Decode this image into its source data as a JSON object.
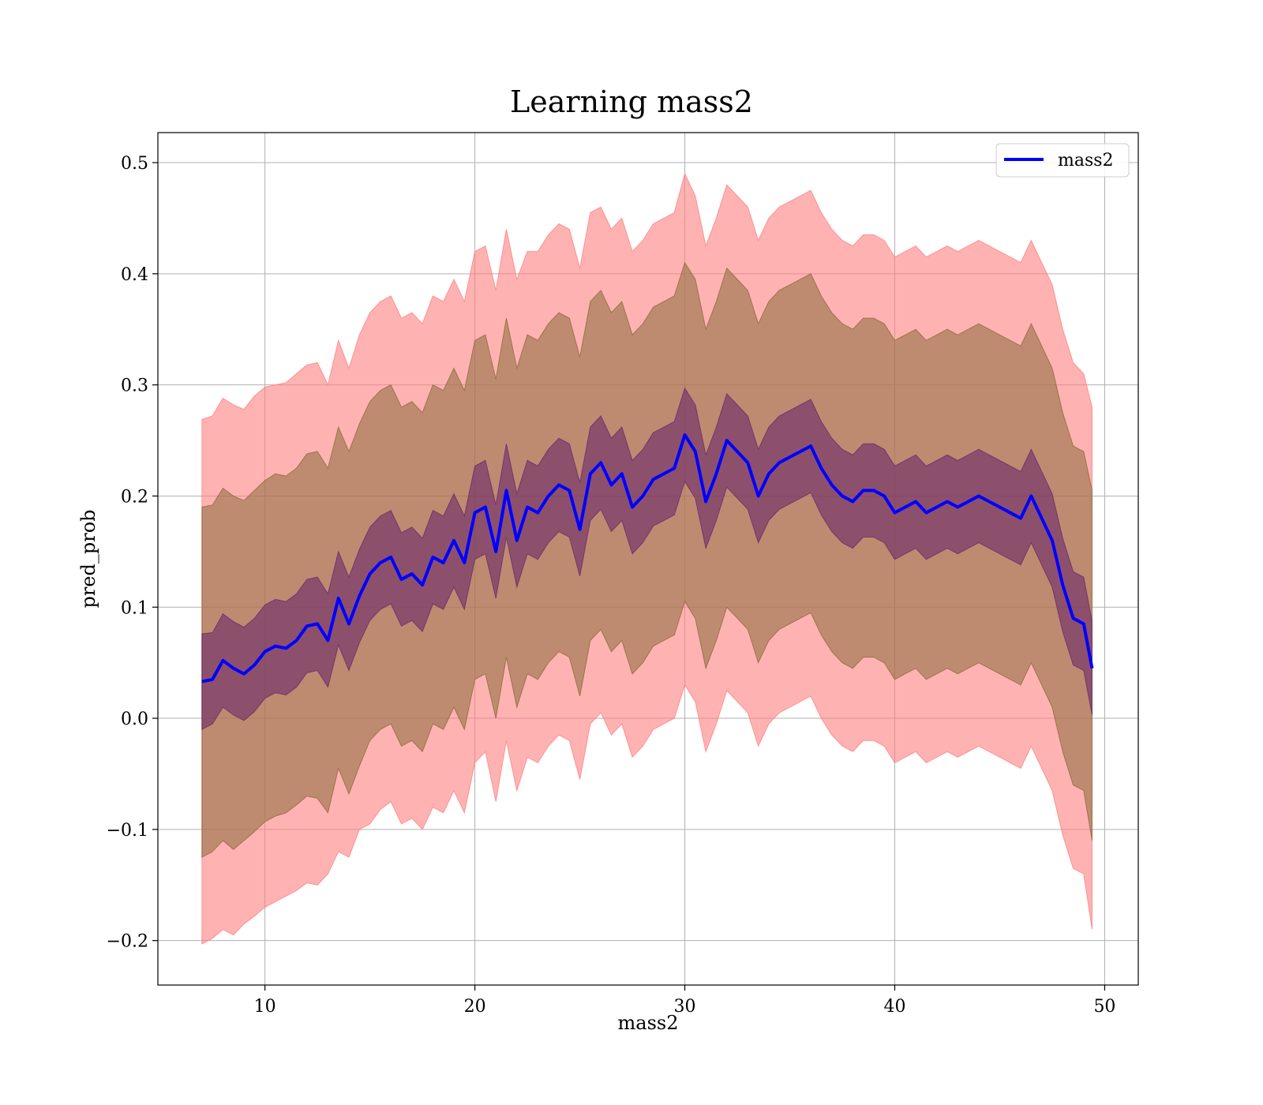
{
  "chart_data": {
    "type": "line",
    "title": "Learning mass2",
    "xlabel": "mass2",
    "ylabel": "pred_prob",
    "xlim": [
      4.9,
      51.6
    ],
    "ylim": [
      -0.24,
      0.527
    ],
    "xticks": [
      10,
      20,
      30,
      40,
      50
    ],
    "yticks": [
      -0.2,
      -0.1,
      0.0,
      0.1,
      0.2,
      0.3,
      0.4,
      0.5
    ],
    "ytick_labels": [
      "−0.2",
      "−0.1",
      "0.0",
      "0.1",
      "0.2",
      "0.3",
      "0.4",
      "0.5"
    ],
    "grid": true,
    "legend": {
      "position": "upper-right",
      "entries": [
        "mass2"
      ]
    },
    "colors": {
      "line": "#0000ff",
      "band_outer": "#ff7f7f",
      "band_middle": "#8b6b3a",
      "band_inner": "#6a2a6a"
    },
    "x": [
      7.0,
      7.5,
      8.0,
      8.5,
      9.0,
      9.5,
      10.0,
      10.5,
      11.0,
      11.5,
      12.0,
      12.5,
      13.0,
      13.5,
      14.0,
      14.5,
      15.0,
      15.5,
      16.0,
      16.5,
      17.0,
      17.5,
      18.0,
      18.5,
      19.0,
      19.5,
      20.0,
      20.5,
      21.0,
      21.5,
      22.0,
      22.5,
      23.0,
      23.5,
      24.0,
      24.5,
      25.0,
      25.5,
      26.0,
      26.5,
      27.0,
      27.5,
      28.0,
      28.5,
      29.0,
      29.5,
      30.0,
      30.5,
      31.0,
      31.5,
      32.0,
      32.5,
      33.0,
      33.5,
      34.0,
      34.5,
      35.0,
      35.5,
      36.0,
      36.5,
      37.0,
      37.5,
      38.0,
      38.5,
      39.0,
      39.5,
      40.0,
      40.5,
      41.0,
      41.5,
      42.0,
      42.5,
      43.0,
      43.5,
      44.0,
      44.5,
      45.0,
      45.5,
      46.0,
      46.5,
      47.0,
      47.5,
      48.0,
      48.5,
      49.0,
      49.4
    ],
    "series": [
      {
        "name": "mass2",
        "values": [
          0.033,
          0.035,
          0.052,
          0.045,
          0.04,
          0.048,
          0.06,
          0.065,
          0.063,
          0.07,
          0.083,
          0.085,
          0.07,
          0.108,
          0.085,
          0.11,
          0.13,
          0.14,
          0.145,
          0.125,
          0.13,
          0.12,
          0.145,
          0.14,
          0.16,
          0.14,
          0.185,
          0.19,
          0.15,
          0.205,
          0.16,
          0.19,
          0.185,
          0.2,
          0.21,
          0.205,
          0.17,
          0.22,
          0.23,
          0.21,
          0.22,
          0.19,
          0.2,
          0.215,
          0.22,
          0.225,
          0.255,
          0.24,
          0.195,
          0.22,
          0.25,
          0.24,
          0.23,
          0.2,
          0.22,
          0.23,
          0.235,
          0.24,
          0.245,
          0.225,
          0.21,
          0.2,
          0.195,
          0.205,
          0.205,
          0.2,
          0.185,
          0.19,
          0.195,
          0.185,
          0.19,
          0.195,
          0.19,
          0.195,
          0.2,
          0.195,
          0.19,
          0.185,
          0.18,
          0.2,
          0.18,
          0.16,
          0.12,
          0.09,
          0.085,
          0.045
        ]
      }
    ],
    "bands": [
      {
        "role": "outer",
        "lower": [
          -0.203,
          -0.198,
          -0.19,
          -0.195,
          -0.185,
          -0.178,
          -0.17,
          -0.165,
          -0.16,
          -0.155,
          -0.148,
          -0.15,
          -0.14,
          -0.12,
          -0.125,
          -0.1,
          -0.095,
          -0.082,
          -0.075,
          -0.095,
          -0.09,
          -0.1,
          -0.08,
          -0.085,
          -0.065,
          -0.085,
          -0.04,
          -0.03,
          -0.075,
          -0.02,
          -0.065,
          -0.035,
          -0.04,
          -0.025,
          -0.015,
          -0.02,
          -0.055,
          -0.005,
          0.005,
          -0.015,
          -0.005,
          -0.035,
          -0.025,
          -0.01,
          -0.005,
          0.0,
          0.03,
          0.015,
          -0.03,
          -0.005,
          0.025,
          0.015,
          0.005,
          -0.025,
          -0.005,
          0.005,
          0.01,
          0.015,
          0.02,
          0.0,
          -0.015,
          -0.025,
          -0.03,
          -0.02,
          -0.02,
          -0.025,
          -0.04,
          -0.035,
          -0.03,
          -0.04,
          -0.035,
          -0.03,
          -0.035,
          -0.03,
          -0.025,
          -0.03,
          -0.035,
          -0.04,
          -0.045,
          -0.025,
          -0.045,
          -0.065,
          -0.105,
          -0.135,
          -0.14,
          -0.19
        ],
        "upper": [
          0.269,
          0.272,
          0.288,
          0.282,
          0.278,
          0.29,
          0.298,
          0.3,
          0.302,
          0.31,
          0.318,
          0.32,
          0.3,
          0.34,
          0.315,
          0.345,
          0.365,
          0.375,
          0.38,
          0.36,
          0.365,
          0.355,
          0.38,
          0.375,
          0.395,
          0.375,
          0.42,
          0.425,
          0.385,
          0.44,
          0.395,
          0.42,
          0.42,
          0.435,
          0.445,
          0.44,
          0.405,
          0.455,
          0.46,
          0.44,
          0.45,
          0.42,
          0.43,
          0.445,
          0.45,
          0.455,
          0.49,
          0.47,
          0.425,
          0.45,
          0.48,
          0.47,
          0.46,
          0.43,
          0.45,
          0.46,
          0.465,
          0.47,
          0.475,
          0.455,
          0.44,
          0.43,
          0.425,
          0.435,
          0.435,
          0.43,
          0.415,
          0.42,
          0.425,
          0.415,
          0.42,
          0.425,
          0.42,
          0.425,
          0.43,
          0.425,
          0.42,
          0.415,
          0.41,
          0.43,
          0.41,
          0.39,
          0.35,
          0.32,
          0.31,
          0.28
        ]
      },
      {
        "role": "middle",
        "lower": [
          -0.125,
          -0.12,
          -0.11,
          -0.118,
          -0.11,
          -0.102,
          -0.093,
          -0.088,
          -0.085,
          -0.078,
          -0.07,
          -0.072,
          -0.085,
          -0.045,
          -0.068,
          -0.043,
          -0.02,
          -0.01,
          -0.005,
          -0.025,
          -0.02,
          -0.03,
          -0.005,
          -0.01,
          0.01,
          -0.01,
          0.035,
          0.04,
          0.0,
          0.055,
          0.01,
          0.04,
          0.035,
          0.05,
          0.06,
          0.055,
          0.02,
          0.07,
          0.08,
          0.06,
          0.07,
          0.04,
          0.05,
          0.065,
          0.07,
          0.075,
          0.105,
          0.09,
          0.045,
          0.07,
          0.1,
          0.09,
          0.08,
          0.05,
          0.07,
          0.08,
          0.085,
          0.09,
          0.095,
          0.075,
          0.06,
          0.05,
          0.045,
          0.055,
          0.055,
          0.05,
          0.035,
          0.04,
          0.045,
          0.035,
          0.04,
          0.045,
          0.04,
          0.045,
          0.05,
          0.045,
          0.04,
          0.035,
          0.03,
          0.05,
          0.03,
          0.01,
          -0.03,
          -0.06,
          -0.065,
          -0.11
        ],
        "upper": [
          0.19,
          0.192,
          0.207,
          0.2,
          0.196,
          0.205,
          0.214,
          0.22,
          0.218,
          0.225,
          0.238,
          0.24,
          0.225,
          0.262,
          0.24,
          0.265,
          0.285,
          0.295,
          0.3,
          0.28,
          0.285,
          0.275,
          0.3,
          0.295,
          0.315,
          0.295,
          0.34,
          0.345,
          0.305,
          0.36,
          0.315,
          0.345,
          0.34,
          0.355,
          0.365,
          0.36,
          0.325,
          0.375,
          0.385,
          0.365,
          0.375,
          0.345,
          0.355,
          0.37,
          0.375,
          0.38,
          0.41,
          0.395,
          0.35,
          0.375,
          0.405,
          0.395,
          0.385,
          0.355,
          0.375,
          0.385,
          0.39,
          0.395,
          0.4,
          0.38,
          0.365,
          0.355,
          0.35,
          0.36,
          0.36,
          0.355,
          0.34,
          0.345,
          0.35,
          0.34,
          0.345,
          0.35,
          0.345,
          0.35,
          0.355,
          0.35,
          0.345,
          0.34,
          0.335,
          0.355,
          0.335,
          0.315,
          0.275,
          0.245,
          0.24,
          0.205
        ]
      },
      {
        "role": "inner",
        "lower": [
          -0.01,
          -0.005,
          0.01,
          0.003,
          -0.002,
          0.006,
          0.018,
          0.023,
          0.021,
          0.028,
          0.041,
          0.043,
          0.028,
          0.066,
          0.043,
          0.068,
          0.088,
          0.098,
          0.103,
          0.083,
          0.088,
          0.078,
          0.103,
          0.098,
          0.118,
          0.098,
          0.143,
          0.148,
          0.108,
          0.163,
          0.118,
          0.148,
          0.143,
          0.158,
          0.168,
          0.163,
          0.128,
          0.178,
          0.188,
          0.168,
          0.178,
          0.148,
          0.158,
          0.173,
          0.178,
          0.183,
          0.213,
          0.198,
          0.153,
          0.178,
          0.208,
          0.198,
          0.188,
          0.158,
          0.178,
          0.188,
          0.193,
          0.198,
          0.203,
          0.183,
          0.168,
          0.158,
          0.153,
          0.163,
          0.163,
          0.158,
          0.143,
          0.148,
          0.153,
          0.143,
          0.148,
          0.153,
          0.148,
          0.153,
          0.158,
          0.153,
          0.148,
          0.143,
          0.138,
          0.158,
          0.138,
          0.118,
          0.078,
          0.048,
          0.043,
          0.003
        ],
        "upper": [
          0.076,
          0.077,
          0.094,
          0.087,
          0.082,
          0.09,
          0.102,
          0.107,
          0.105,
          0.112,
          0.125,
          0.127,
          0.112,
          0.15,
          0.127,
          0.152,
          0.172,
          0.182,
          0.187,
          0.167,
          0.172,
          0.162,
          0.187,
          0.182,
          0.202,
          0.182,
          0.227,
          0.232,
          0.192,
          0.247,
          0.202,
          0.232,
          0.227,
          0.242,
          0.252,
          0.247,
          0.212,
          0.262,
          0.272,
          0.252,
          0.262,
          0.232,
          0.242,
          0.257,
          0.262,
          0.267,
          0.297,
          0.282,
          0.237,
          0.262,
          0.292,
          0.282,
          0.272,
          0.242,
          0.262,
          0.272,
          0.277,
          0.282,
          0.287,
          0.267,
          0.252,
          0.242,
          0.237,
          0.247,
          0.247,
          0.242,
          0.227,
          0.232,
          0.237,
          0.227,
          0.232,
          0.237,
          0.232,
          0.237,
          0.242,
          0.237,
          0.232,
          0.227,
          0.222,
          0.242,
          0.222,
          0.202,
          0.162,
          0.132,
          0.127,
          0.087
        ]
      }
    ]
  }
}
